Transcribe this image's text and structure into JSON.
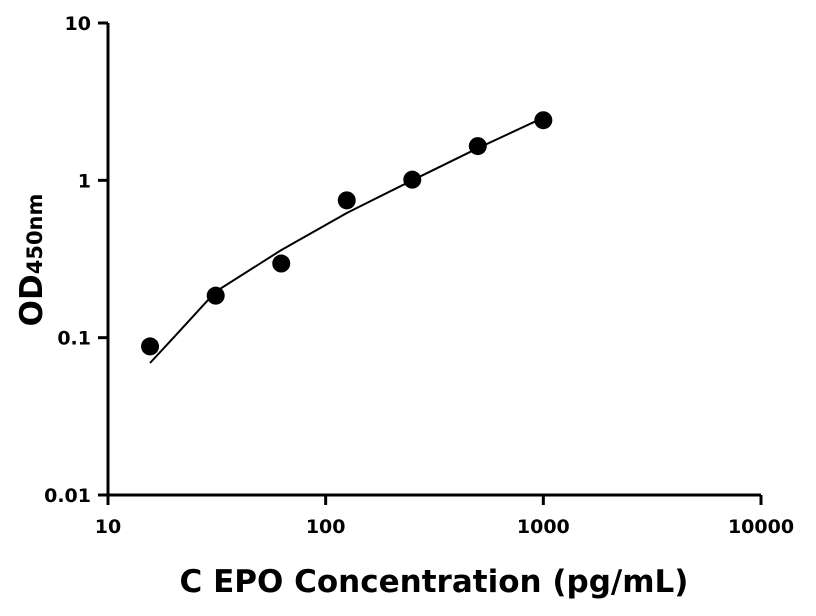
{
  "chart_data": {
    "type": "scatter",
    "title": "",
    "xlabel": "C EPO Concentration (pg/mL)",
    "ylabel": "OD",
    "ylabel_sub": "450nm",
    "xscale": "log",
    "yscale": "log",
    "xlim": [
      10,
      10000
    ],
    "ylim": [
      0.01,
      10
    ],
    "xticks": [
      10,
      100,
      1000,
      10000
    ],
    "xtick_labels": [
      "10",
      "100",
      "1000",
      "10000"
    ],
    "yticks": [
      0.01,
      0.1,
      1,
      10
    ],
    "ytick_labels": [
      "0.01",
      "0.1",
      "1",
      "10"
    ],
    "grid": false,
    "series": [
      {
        "x": [
          15.6,
          31.25,
          62.5,
          125,
          250,
          500,
          1000
        ],
        "y": [
          0.088,
          0.185,
          0.296,
          0.746,
          1.01,
          1.65,
          2.41
        ],
        "marker_color": "#000000"
      }
    ],
    "fit_curve": {
      "x": [
        15.6,
        20,
        31.25,
        62.5,
        125,
        250,
        500,
        1000
      ],
      "y": [
        0.069,
        0.1,
        0.196,
        0.36,
        0.62,
        1.0,
        1.6,
        2.5
      ],
      "color": "#000000"
    }
  }
}
